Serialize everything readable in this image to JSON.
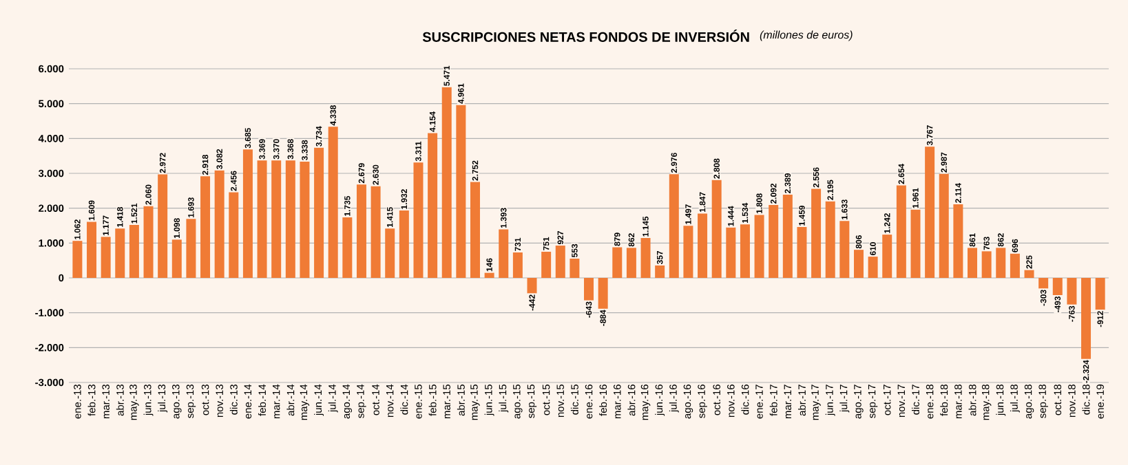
{
  "chart_data": {
    "type": "bar",
    "title": "SUSCRIPCIONES NETAS FONDOS DE INVERSIÓN",
    "subtitle": "(millones de euros)",
    "categories": [
      "ene.-13",
      "feb.-13",
      "mar.-13",
      "abr.-13",
      "may.-13",
      "jun.-13",
      "jul.-13",
      "ago.-13",
      "sep.-13",
      "oct.-13",
      "nov.-13",
      "dic.-13",
      "ene.-14",
      "feb.-14",
      "mar.-14",
      "abr.-14",
      "may.-14",
      "jun.-14",
      "jul.-14",
      "ago.-14",
      "sep.-14",
      "oct.-14",
      "nov.-14",
      "dic.-14",
      "ene.-15",
      "feb.-15",
      "mar.-15",
      "abr.-15",
      "may.-15",
      "jun.-15",
      "jul.-15",
      "ago.-15",
      "sep.-15",
      "oct.-15",
      "nov.-15",
      "dic.-15",
      "ene.-16",
      "feb.-16",
      "mar.-16",
      "abr.-16",
      "may.-16",
      "jun.-16",
      "jul.-16",
      "ago.-16",
      "sep.-16",
      "oct.-16",
      "nov.-16",
      "dic.-16",
      "ene.-17",
      "feb.-17",
      "mar.-17",
      "abr.-17",
      "may.-17",
      "jun.-17",
      "jul.-17",
      "ago.-17",
      "sep.-17",
      "oct.-17",
      "nov.-17",
      "dic.-17",
      "ene.-18",
      "feb.-18",
      "mar.-18",
      "abr.-18",
      "may.-18",
      "jun.-18",
      "jul.-18",
      "ago.-18",
      "sep.-18",
      "oct.-18",
      "nov.-18",
      "dic.-18",
      "ene.-19"
    ],
    "values": [
      1062,
      1609,
      1177,
      1418,
      1521,
      2060,
      2972,
      1098,
      1693,
      2918,
      3082,
      2456,
      3685,
      3369,
      3370,
      3368,
      3338,
      3734,
      4338,
      1735,
      2679,
      2630,
      1415,
      1932,
      3311,
      4154,
      5471,
      4961,
      2752,
      146,
      1393,
      731,
      -442,
      751,
      927,
      553,
      -643,
      -884,
      879,
      862,
      1145,
      357,
      2976,
      1497,
      1847,
      2808,
      1444,
      1534,
      1808,
      2092,
      2389,
      1459,
      2556,
      2195,
      1633,
      806,
      610,
      1242,
      2654,
      1961,
      3767,
      2987,
      2114,
      861,
      763,
      862,
      696,
      225,
      -303,
      -493,
      -763,
      -2324,
      -912
    ],
    "value_labels": [
      "1.062",
      "1.609",
      "1.177",
      "1.418",
      "1.521",
      "2.060",
      "2.972",
      "1.098",
      "1.693",
      "2.918",
      "3.082",
      "2.456",
      "3.685",
      "3.369",
      "3.370",
      "3.368",
      "3.338",
      "3.734",
      "4.338",
      "1.735",
      "2.679",
      "2.630",
      "1.415",
      "1.932",
      "3.311",
      "4.154",
      "5.471",
      "4.961",
      "2.752",
      "146",
      "1.393",
      "731",
      "-442",
      "751",
      "927",
      "553",
      "-643",
      "-884",
      "879",
      "862",
      "1.145",
      "357",
      "2.976",
      "1.497",
      "1.847",
      "2.808",
      "1.444",
      "1.534",
      "1.808",
      "2.092",
      "2.389",
      "1.459",
      "2.556",
      "2.195",
      "1.633",
      "806",
      "610",
      "1.242",
      "2.654",
      "1.961",
      "3.767",
      "2.987",
      "2.114",
      "861",
      "763",
      "862",
      "696",
      "225",
      "-303",
      "-493",
      "-763",
      "-2.324",
      "-912"
    ],
    "color": "#f07b35",
    "ylim": [
      -3000,
      6000
    ],
    "yticks": [
      {
        "value": -3000,
        "label": "-3.000"
      },
      {
        "value": -2000,
        "label": "-2.000"
      },
      {
        "value": -1000,
        "label": "-1.000"
      },
      0,
      {
        "value": 1000,
        "label": "1.000"
      },
      {
        "value": 2000,
        "label": "2.000"
      },
      {
        "value": 3000,
        "label": "3.000"
      },
      {
        "value": 4000,
        "label": "4.000"
      },
      {
        "value": 5000,
        "label": "5.000"
      },
      {
        "value": 6000,
        "label": "6.000"
      }
    ],
    "grid": "y"
  }
}
